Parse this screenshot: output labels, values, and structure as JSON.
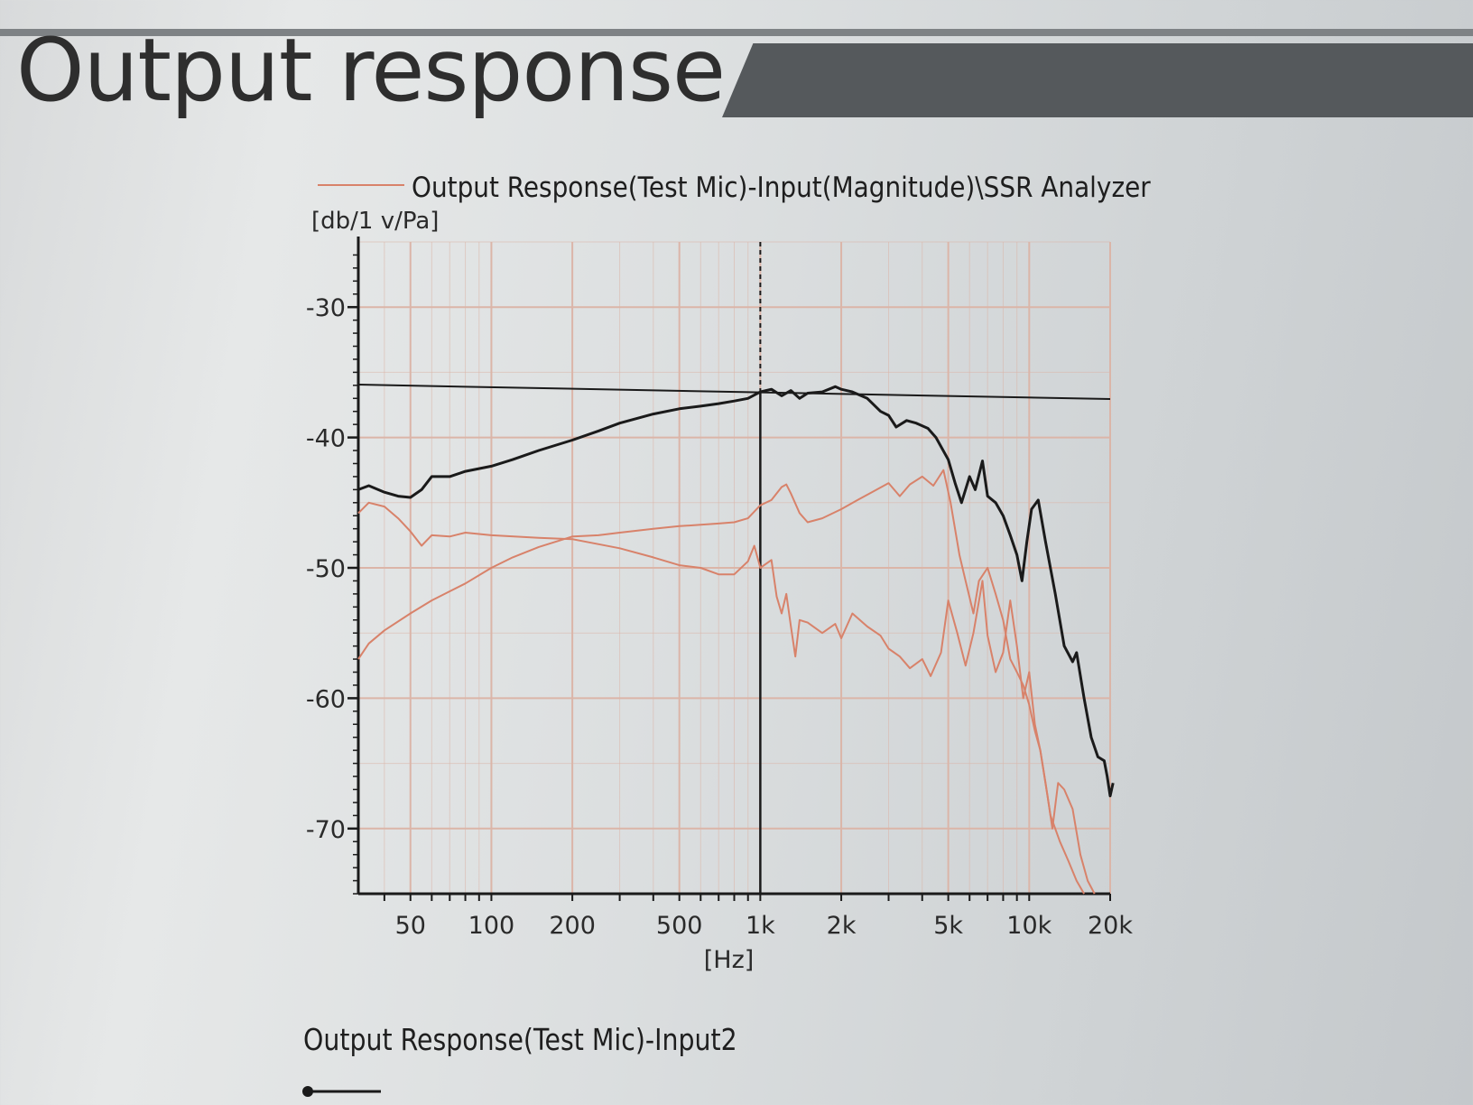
{
  "page": {
    "title": "Output response"
  },
  "footer": {
    "label": "Output Response(Test Mic)-Input2"
  },
  "colors": {
    "black_series": "#1a1a1a",
    "red_series": "#d8826a",
    "grid": "#dbb5a8"
  },
  "chart_data": {
    "type": "line",
    "title": "Output Response(Test Mic)-Input(Magnitude)\\SSR Analyzer",
    "xlabel": "[Hz]",
    "ylabel": "[db/1 v/Pa]",
    "xscale": "log",
    "xlim": [
      32,
      20000
    ],
    "ylim": [
      -75,
      -25
    ],
    "xticks": [
      {
        "value": 50,
        "label": "50"
      },
      {
        "value": 100,
        "label": "100"
      },
      {
        "value": 200,
        "label": "200"
      },
      {
        "value": 500,
        "label": "500"
      },
      {
        "value": 1000,
        "label": "1k"
      },
      {
        "value": 2000,
        "label": "2k"
      },
      {
        "value": 5000,
        "label": "5k"
      },
      {
        "value": 10000,
        "label": "10k"
      },
      {
        "value": 20000,
        "label": "20k"
      }
    ],
    "yticks": [
      {
        "value": -30,
        "label": "-30"
      },
      {
        "value": -40,
        "label": "-40"
      },
      {
        "value": -50,
        "label": "-50"
      },
      {
        "value": -60,
        "label": "-60"
      },
      {
        "value": -70,
        "label": "-70"
      }
    ],
    "grid": true,
    "legend": "top",
    "cursor": {
      "x": 1000,
      "y": -36.5
    },
    "series": [
      {
        "color": "#1a1a1a",
        "points": [
          [
            32,
            -44
          ],
          [
            35,
            -43.7
          ],
          [
            40,
            -44.2
          ],
          [
            45,
            -44.5
          ],
          [
            50,
            -44.6
          ],
          [
            55,
            -44
          ],
          [
            60,
            -43.0
          ],
          [
            70,
            -43
          ],
          [
            80,
            -42.6
          ],
          [
            100,
            -42.2
          ],
          [
            120,
            -41.7
          ],
          [
            150,
            -41
          ],
          [
            200,
            -40.2
          ],
          [
            250,
            -39.5
          ],
          [
            300,
            -38.9
          ],
          [
            400,
            -38.2
          ],
          [
            500,
            -37.8
          ],
          [
            600,
            -37.6
          ],
          [
            700,
            -37.4
          ],
          [
            800,
            -37.2
          ],
          [
            900,
            -37
          ],
          [
            1000,
            -36.5
          ],
          [
            1100,
            -36.3
          ],
          [
            1200,
            -36.8
          ],
          [
            1300,
            -36.4
          ],
          [
            1400,
            -37
          ],
          [
            1500,
            -36.6
          ],
          [
            1700,
            -36.5
          ],
          [
            1900,
            -36.1
          ],
          [
            2000,
            -36.3
          ],
          [
            2200,
            -36.5
          ],
          [
            2500,
            -37
          ],
          [
            2800,
            -38
          ],
          [
            3000,
            -38.3
          ],
          [
            3200,
            -39.2
          ],
          [
            3500,
            -38.7
          ],
          [
            3800,
            -38.9
          ],
          [
            4200,
            -39.3
          ],
          [
            4500,
            -40
          ],
          [
            5000,
            -41.7
          ],
          [
            5300,
            -43.5
          ],
          [
            5600,
            -45
          ],
          [
            6000,
            -43
          ],
          [
            6300,
            -44
          ],
          [
            6700,
            -41.8
          ],
          [
            7000,
            -44.5
          ],
          [
            7500,
            -45
          ],
          [
            8000,
            -46
          ],
          [
            8500,
            -47.5
          ],
          [
            9000,
            -49
          ],
          [
            9400,
            -51
          ],
          [
            9800,
            -48
          ],
          [
            10200,
            -45.5
          ],
          [
            10800,
            -44.8
          ],
          [
            11500,
            -48
          ],
          [
            12500,
            -52
          ],
          [
            13500,
            -56
          ],
          [
            14500,
            -57.2
          ],
          [
            15000,
            -56.5
          ],
          [
            16000,
            -60
          ],
          [
            17000,
            -63
          ],
          [
            18000,
            -64.5
          ],
          [
            19000,
            -64.8
          ],
          [
            19500,
            -66
          ],
          [
            20000,
            -67.5
          ],
          [
            20500,
            -66.5
          ]
        ]
      },
      {
        "color": "#d8826a",
        "points": [
          [
            32,
            -45.8
          ],
          [
            35,
            -45
          ],
          [
            40,
            -45.3
          ],
          [
            45,
            -46.2
          ],
          [
            50,
            -47.2
          ],
          [
            55,
            -48.3
          ],
          [
            60,
            -47.5
          ],
          [
            70,
            -47.6
          ],
          [
            80,
            -47.3
          ],
          [
            100,
            -47.5
          ],
          [
            150,
            -47.7
          ],
          [
            200,
            -47.8
          ],
          [
            300,
            -48.5
          ],
          [
            400,
            -49.2
          ],
          [
            500,
            -49.8
          ],
          [
            600,
            -50
          ],
          [
            700,
            -50.5
          ],
          [
            800,
            -50.5
          ],
          [
            900,
            -49.5
          ],
          [
            950,
            -48.3
          ],
          [
            1000,
            -50
          ],
          [
            1100,
            -49.4
          ],
          [
            1150,
            -52.2
          ],
          [
            1200,
            -53.5
          ],
          [
            1250,
            -52
          ],
          [
            1300,
            -54.5
          ],
          [
            1350,
            -56.8
          ],
          [
            1400,
            -54
          ],
          [
            1500,
            -54.2
          ],
          [
            1700,
            -55
          ],
          [
            1900,
            -54.3
          ],
          [
            2000,
            -55.4
          ],
          [
            2200,
            -53.5
          ],
          [
            2500,
            -54.5
          ],
          [
            2800,
            -55.2
          ],
          [
            3000,
            -56.2
          ],
          [
            3300,
            -56.8
          ],
          [
            3600,
            -57.7
          ],
          [
            4000,
            -57
          ],
          [
            4300,
            -58.3
          ],
          [
            4700,
            -56.5
          ],
          [
            5000,
            -52.5
          ],
          [
            5400,
            -55
          ],
          [
            5800,
            -57.5
          ],
          [
            6200,
            -55
          ],
          [
            6700,
            -51
          ],
          [
            7000,
            -55.2
          ],
          [
            7500,
            -58
          ],
          [
            8000,
            -56.5
          ],
          [
            8500,
            -52.5
          ],
          [
            9000,
            -56
          ],
          [
            9500,
            -60
          ],
          [
            10000,
            -58
          ],
          [
            10500,
            -62
          ],
          [
            11000,
            -64
          ],
          [
            11700,
            -67.5
          ],
          [
            12200,
            -70
          ],
          [
            12800,
            -66.5
          ],
          [
            13500,
            -67
          ],
          [
            14500,
            -68.5
          ],
          [
            15500,
            -72
          ],
          [
            16500,
            -74
          ],
          [
            17500,
            -75
          ]
        ]
      },
      {
        "color": "#d8826a",
        "points": [
          [
            32,
            -57
          ],
          [
            35,
            -55.8
          ],
          [
            40,
            -54.8
          ],
          [
            50,
            -53.5
          ],
          [
            60,
            -52.5
          ],
          [
            70,
            -51.8
          ],
          [
            80,
            -51.2
          ],
          [
            100,
            -50
          ],
          [
            120,
            -49.2
          ],
          [
            150,
            -48.4
          ],
          [
            200,
            -47.6
          ],
          [
            250,
            -47.5
          ],
          [
            300,
            -47.3
          ],
          [
            400,
            -47
          ],
          [
            500,
            -46.8
          ],
          [
            600,
            -46.7
          ],
          [
            700,
            -46.6
          ],
          [
            800,
            -46.5
          ],
          [
            900,
            -46.2
          ],
          [
            1000,
            -45.2
          ],
          [
            1100,
            -44.8
          ],
          [
            1200,
            -43.8
          ],
          [
            1250,
            -43.6
          ],
          [
            1300,
            -44.3
          ],
          [
            1400,
            -45.8
          ],
          [
            1500,
            -46.5
          ],
          [
            1700,
            -46.2
          ],
          [
            2000,
            -45.5
          ],
          [
            2300,
            -44.8
          ],
          [
            2600,
            -44.2
          ],
          [
            3000,
            -43.5
          ],
          [
            3300,
            -44.5
          ],
          [
            3600,
            -43.6
          ],
          [
            4000,
            -43
          ],
          [
            4400,
            -43.7
          ],
          [
            4800,
            -42.5
          ],
          [
            5100,
            -45
          ],
          [
            5500,
            -49
          ],
          [
            5800,
            -51
          ],
          [
            6200,
            -53.5
          ],
          [
            6500,
            -51
          ],
          [
            7000,
            -50
          ],
          [
            7500,
            -52
          ],
          [
            8000,
            -54
          ],
          [
            8500,
            -57
          ],
          [
            9000,
            -58
          ],
          [
            9500,
            -59
          ],
          [
            10000,
            -60.5
          ],
          [
            10500,
            -62.5
          ],
          [
            11000,
            -64
          ],
          [
            11500,
            -66.5
          ],
          [
            12000,
            -69
          ],
          [
            13000,
            -71
          ],
          [
            14000,
            -72.5
          ],
          [
            15000,
            -74
          ],
          [
            16000,
            -75
          ]
        ]
      }
    ]
  }
}
